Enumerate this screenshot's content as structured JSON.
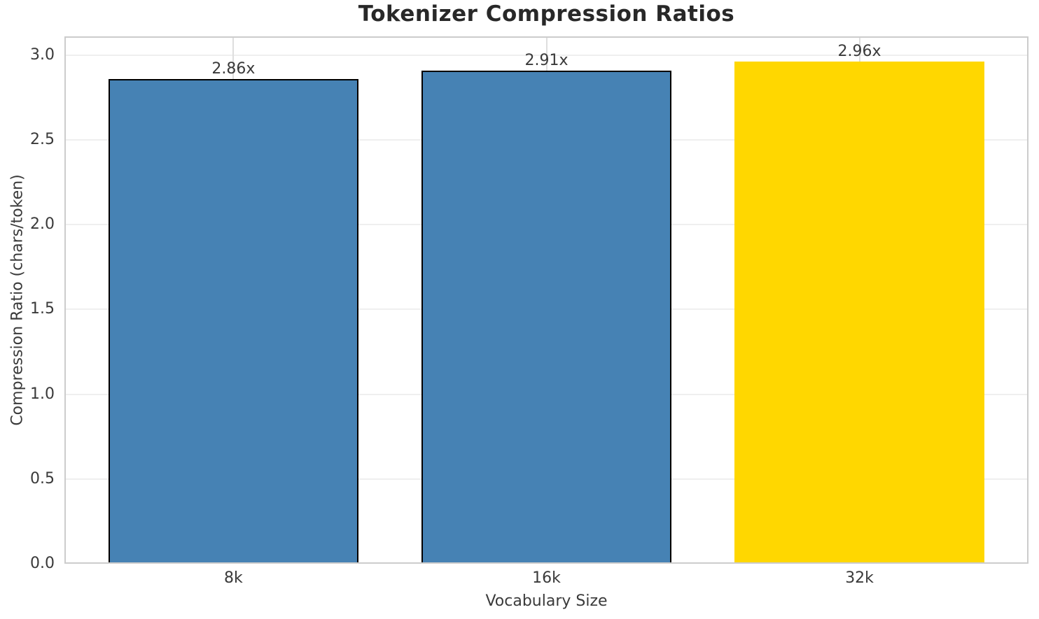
{
  "chart_data": {
    "type": "bar",
    "title": "Tokenizer Compression Ratios",
    "xlabel": "Vocabulary Size",
    "ylabel": "Compression Ratio (chars/token)",
    "categories": [
      "8k",
      "16k",
      "32k"
    ],
    "values": [
      2.86,
      2.91,
      2.96
    ],
    "bar_labels": [
      "2.86x",
      "2.91x",
      "2.96x"
    ],
    "bar_colors": [
      "#4682b4",
      "#4682b4",
      "#ffd700"
    ],
    "bar_edge_colors": [
      "#000000",
      "#000000",
      "none"
    ],
    "ylim": [
      0,
      3.11
    ],
    "yticks": [
      0.0,
      0.5,
      1.0,
      1.5,
      2.0,
      2.5,
      3.0
    ],
    "ytick_labels": [
      "0.0",
      "0.5",
      "1.0",
      "1.5",
      "2.0",
      "2.5",
      "3.0"
    ],
    "grid": "both",
    "legend": "none",
    "colors": {
      "grid_h": "#efefef",
      "grid_v": "#dedede",
      "spine": "#cccccc",
      "text": "#3a3a3a",
      "title": "#282828",
      "background": "#ffffff"
    }
  }
}
